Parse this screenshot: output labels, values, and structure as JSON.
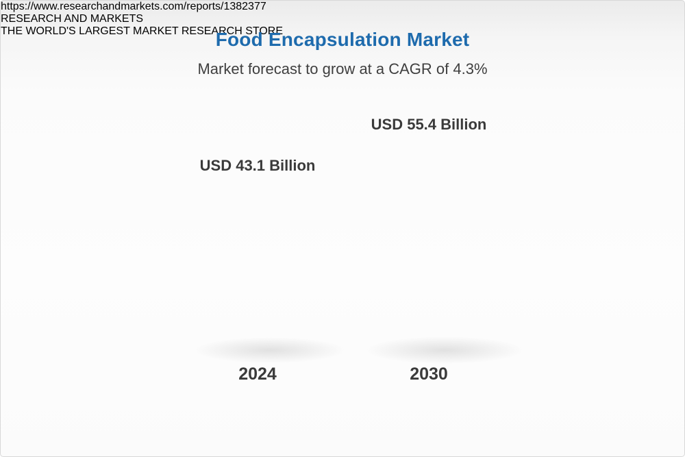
{
  "page": {
    "title": "Food Encapsulation Market",
    "subtitle": "Market forecast to grow at a CAGR of 4.3%"
  },
  "chart_data": {
    "type": "bar",
    "title": "Food Encapsulation Market",
    "subtitle": "Market forecast to grow at a CAGR of 4.3%",
    "cagr_percent": 4.3,
    "unit": "USD Billion",
    "categories": [
      "2024",
      "2030"
    ],
    "values": [
      43.1,
      55.4
    ],
    "value_labels": [
      "USD 43.1 Billion",
      "USD 55.4 Billion"
    ],
    "colors": {
      "bar_base": "#F6CE62",
      "bar_growth_segment": "#46799F",
      "title": "#1E6BAD",
      "text": "#3A3A3A"
    },
    "layout": {
      "orientation": "vertical",
      "grid": false,
      "legend": false,
      "style": "3d-cylinder"
    }
  },
  "footer": {
    "url": "https://www.researchandmarkets.com/reports/1382377",
    "logo": {
      "research": "RESEARCH",
      "and": "AND",
      "markets": "MARKETS",
      "tagline": "THE WORLD'S LARGEST MARKET RESEARCH STORE"
    }
  }
}
